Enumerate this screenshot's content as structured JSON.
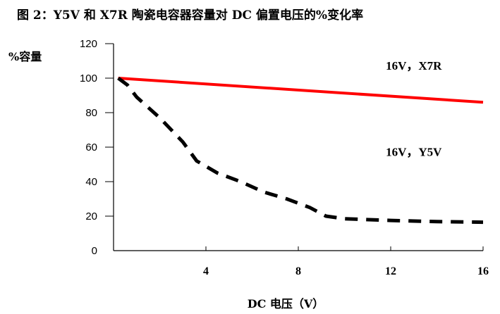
{
  "chart_data": {
    "type": "line",
    "title": "图 2：Y5V 和 X7R 陶瓷电容器容量对 DC 偏置电压的%变化率",
    "xlabel": "DC 电压（V）",
    "ylabel": "%容量",
    "xlim": [
      0,
      16
    ],
    "ylim": [
      0,
      120
    ],
    "xticks": [
      4,
      8,
      12,
      16
    ],
    "xtick_labels": [
      "4",
      "8",
      "12",
      "16"
    ],
    "yticks": [
      0,
      20,
      40,
      60,
      80,
      100,
      120
    ],
    "ytick_labels": [
      "0",
      "20",
      "40",
      "60",
      "80",
      "100",
      "120"
    ],
    "grid": false,
    "series": [
      {
        "name": "16V，X7R",
        "color": "#ff0000",
        "style": "solid",
        "x": [
          0.2,
          16
        ],
        "y": [
          100,
          86
        ]
      },
      {
        "name": "16V，Y5V",
        "color": "#000000",
        "style": "dashed",
        "x": [
          0.2,
          0.6,
          1.0,
          2.0,
          3.0,
          3.6,
          4.5,
          5.5,
          6.5,
          7.5,
          8.5,
          9.2,
          10.0,
          12.0,
          14.0,
          16.0
        ],
        "y": [
          100,
          96,
          89,
          77,
          63,
          52,
          45,
          40,
          34,
          30,
          25,
          20,
          18.5,
          17.5,
          16.8,
          16.5
        ]
      }
    ]
  }
}
